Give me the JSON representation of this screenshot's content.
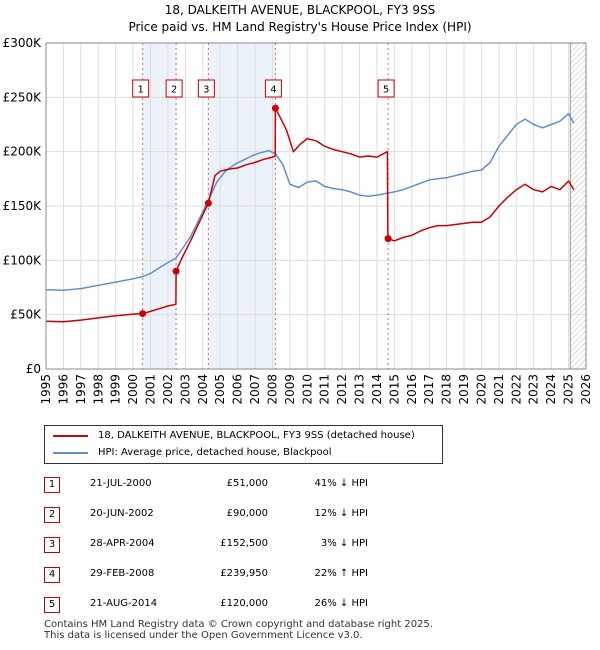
{
  "title": {
    "line1": "18, DALKEITH AVENUE, BLACKPOOL, FY3 9SS",
    "line2": "Price paid vs. HM Land Registry's House Price Index (HPI)"
  },
  "colors": {
    "property": "#cc0000",
    "hpi": "#5b8fd4",
    "grid": "#dddddd",
    "band": "#dde8f5"
  },
  "chart_data": {
    "type": "line",
    "xlim": [
      1995,
      2026
    ],
    "ylim": [
      0,
      300000
    ],
    "xticks": [
      "1995",
      "1996",
      "1997",
      "1998",
      "1999",
      "2000",
      "2001",
      "2002",
      "2003",
      "2004",
      "2005",
      "2006",
      "2007",
      "2008",
      "2009",
      "2010",
      "2011",
      "2012",
      "2013",
      "2014",
      "2015",
      "2016",
      "2017",
      "2018",
      "2019",
      "2020",
      "2021",
      "2022",
      "2023",
      "2024",
      "2025",
      "2026"
    ],
    "yticks": [
      {
        "value": 0,
        "label": "£0"
      },
      {
        "value": 50000,
        "label": "£50K"
      },
      {
        "value": 100000,
        "label": "£100K"
      },
      {
        "value": 150000,
        "label": "£150K"
      },
      {
        "value": 200000,
        "label": "£200K"
      },
      {
        "value": 250000,
        "label": "£250K"
      },
      {
        "value": 300000,
        "label": "£300K"
      }
    ],
    "series": [
      {
        "name": "18, DALKEITH AVENUE, BLACKPOOL, FY3 9SS (detached house)",
        "color": "#cc0000",
        "points": [
          [
            1995.0,
            44000
          ],
          [
            1996.0,
            43500
          ],
          [
            1997.0,
            45000
          ],
          [
            1998.0,
            47000
          ],
          [
            1999.0,
            49000
          ],
          [
            2000.0,
            50500
          ],
          [
            2000.55,
            51000
          ],
          [
            2001.0,
            53000
          ],
          [
            2001.5,
            55500
          ],
          [
            2002.0,
            58000
          ],
          [
            2002.46,
            59500
          ],
          [
            2002.47,
            90000
          ],
          [
            2002.8,
            102000
          ],
          [
            2003.3,
            118000
          ],
          [
            2003.8,
            135000
          ],
          [
            2004.32,
            152500
          ],
          [
            2004.7,
            178000
          ],
          [
            2005.0,
            182000
          ],
          [
            2005.5,
            184000
          ],
          [
            2006.0,
            185000
          ],
          [
            2006.5,
            188000
          ],
          [
            2007.0,
            190000
          ],
          [
            2007.5,
            193000
          ],
          [
            2008.0,
            195000
          ],
          [
            2008.16,
            196000
          ],
          [
            2008.17,
            239950
          ],
          [
            2008.4,
            233000
          ],
          [
            2008.8,
            220000
          ],
          [
            2009.2,
            200000
          ],
          [
            2009.6,
            207000
          ],
          [
            2010.0,
            212000
          ],
          [
            2010.5,
            210000
          ],
          [
            2011.0,
            205000
          ],
          [
            2011.5,
            202000
          ],
          [
            2012.0,
            200000
          ],
          [
            2012.5,
            198000
          ],
          [
            2013.0,
            195000
          ],
          [
            2013.5,
            196000
          ],
          [
            2014.0,
            195000
          ],
          [
            2014.6,
            200000
          ],
          [
            2014.63,
            120000
          ],
          [
            2015.0,
            118000
          ],
          [
            2015.5,
            121000
          ],
          [
            2016.0,
            123000
          ],
          [
            2016.5,
            127000
          ],
          [
            2017.0,
            130000
          ],
          [
            2017.5,
            132000
          ],
          [
            2018.0,
            132000
          ],
          [
            2018.5,
            133000
          ],
          [
            2019.0,
            134000
          ],
          [
            2019.5,
            135000
          ],
          [
            2020.0,
            135000
          ],
          [
            2020.5,
            140000
          ],
          [
            2021.0,
            150000
          ],
          [
            2021.5,
            158000
          ],
          [
            2022.0,
            165000
          ],
          [
            2022.5,
            170000
          ],
          [
            2023.0,
            165000
          ],
          [
            2023.5,
            163000
          ],
          [
            2024.0,
            168000
          ],
          [
            2024.5,
            165000
          ],
          [
            2025.0,
            173000
          ],
          [
            2025.3,
            165000
          ]
        ]
      },
      {
        "name": "HPI: Average price, detached house, Blackpool",
        "color": "#5b8fd4",
        "points": [
          [
            1995.0,
            73000
          ],
          [
            1996.0,
            72500
          ],
          [
            1997.0,
            74000
          ],
          [
            1998.0,
            77000
          ],
          [
            1999.0,
            80000
          ],
          [
            2000.0,
            83000
          ],
          [
            2000.55,
            85000
          ],
          [
            2001.0,
            88000
          ],
          [
            2001.5,
            93000
          ],
          [
            2002.0,
            98000
          ],
          [
            2002.46,
            102000
          ],
          [
            2002.8,
            110000
          ],
          [
            2003.3,
            122000
          ],
          [
            2003.8,
            138000
          ],
          [
            2004.32,
            155000
          ],
          [
            2004.8,
            172000
          ],
          [
            2005.3,
            182000
          ],
          [
            2005.8,
            188000
          ],
          [
            2006.3,
            192000
          ],
          [
            2006.8,
            196000
          ],
          [
            2007.3,
            199000
          ],
          [
            2007.8,
            201000
          ],
          [
            2008.17,
            198000
          ],
          [
            2008.6,
            188000
          ],
          [
            2009.0,
            170000
          ],
          [
            2009.5,
            167000
          ],
          [
            2010.0,
            172000
          ],
          [
            2010.5,
            173000
          ],
          [
            2011.0,
            168000
          ],
          [
            2011.5,
            166000
          ],
          [
            2012.0,
            165000
          ],
          [
            2012.5,
            163000
          ],
          [
            2013.0,
            160000
          ],
          [
            2013.5,
            159000
          ],
          [
            2014.0,
            160000
          ],
          [
            2014.63,
            162000
          ],
          [
            2015.0,
            163000
          ],
          [
            2015.5,
            165000
          ],
          [
            2016.0,
            168000
          ],
          [
            2016.5,
            171000
          ],
          [
            2017.0,
            174000
          ],
          [
            2017.5,
            175000
          ],
          [
            2018.0,
            176000
          ],
          [
            2018.5,
            178000
          ],
          [
            2019.0,
            180000
          ],
          [
            2019.5,
            182000
          ],
          [
            2020.0,
            183000
          ],
          [
            2020.5,
            190000
          ],
          [
            2021.0,
            205000
          ],
          [
            2021.5,
            215000
          ],
          [
            2022.0,
            225000
          ],
          [
            2022.5,
            230000
          ],
          [
            2023.0,
            225000
          ],
          [
            2023.5,
            222000
          ],
          [
            2024.0,
            225000
          ],
          [
            2024.5,
            228000
          ],
          [
            2025.0,
            235000
          ],
          [
            2025.3,
            226000
          ]
        ]
      }
    ],
    "markers": [
      {
        "label": "1",
        "x": 2000.55,
        "y": 51000
      },
      {
        "label": "2",
        "x": 2002.47,
        "y": 90000
      },
      {
        "label": "3",
        "x": 2004.32,
        "y": 152500
      },
      {
        "label": "4",
        "x": 2008.17,
        "y": 239950
      },
      {
        "label": "5",
        "x": 2014.64,
        "y": 120000
      }
    ],
    "forecast_start": 2025.1
  },
  "legend": {
    "property": "18, DALKEITH AVENUE, BLACKPOOL, FY3 9SS (detached house)",
    "hpi": "HPI: Average price, detached house, Blackpool"
  },
  "sales": [
    {
      "num": "1",
      "date": "21-JUL-2000",
      "price": "£51,000",
      "hpi": "41% ↓ HPI"
    },
    {
      "num": "2",
      "date": "20-JUN-2002",
      "price": "£90,000",
      "hpi": "12% ↓ HPI"
    },
    {
      "num": "3",
      "date": "28-APR-2004",
      "price": "£152,500",
      "hpi": "3% ↓ HPI"
    },
    {
      "num": "4",
      "date": "29-FEB-2008",
      "price": "£239,950",
      "hpi": "22% ↑ HPI"
    },
    {
      "num": "5",
      "date": "21-AUG-2014",
      "price": "£120,000",
      "hpi": "26% ↓ HPI"
    }
  ],
  "footer": {
    "line1": "Contains HM Land Registry data © Crown copyright and database right 2025.",
    "line2": "This data is licensed under the Open Government Licence v3.0."
  }
}
